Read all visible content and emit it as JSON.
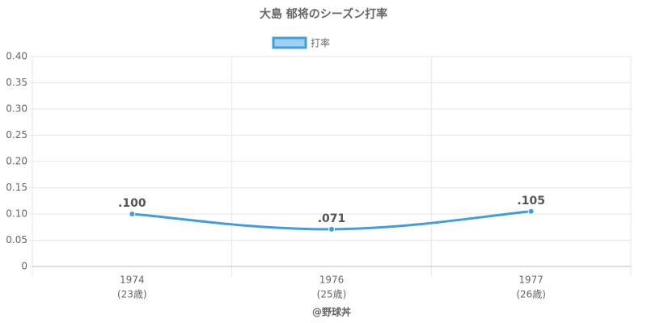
{
  "chart_data": {
    "type": "line",
    "title": "大島 郁将のシーズン打率",
    "x_label": "@野球丼",
    "categories": [
      "1974",
      "1976",
      "1977"
    ],
    "category_sublabels": [
      "(23歳)",
      "(25歳)",
      "(26歳)"
    ],
    "series": [
      {
        "name": "打率",
        "color": "#3d9fe0",
        "values": [
          0.1,
          0.071,
          0.105
        ],
        "value_labels": [
          ".100",
          ".071",
          ".105"
        ]
      }
    ],
    "ylim": [
      0,
      0.4
    ],
    "yticks": [
      0,
      0.05,
      {
        "value": 0.1,
        "label": "0.10"
      },
      0.15,
      {
        "value": 0.2,
        "label": "0.20"
      },
      0.25,
      {
        "value": 0.3,
        "label": "0.30"
      },
      0.35,
      {
        "value": 0.4,
        "label": "0.40"
      }
    ],
    "grid": true,
    "legend": "top"
  }
}
